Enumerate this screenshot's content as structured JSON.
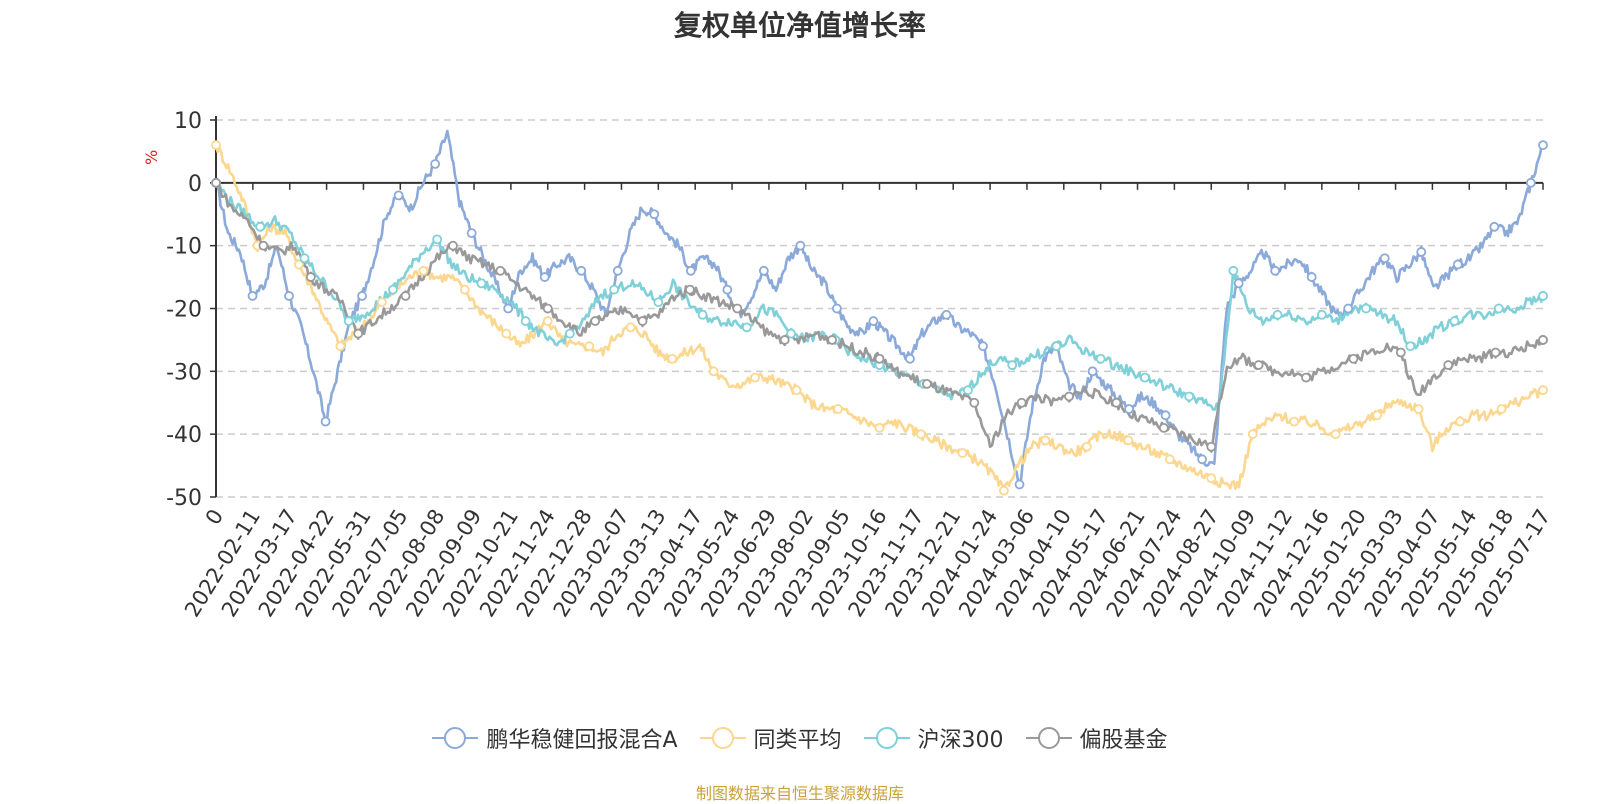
{
  "chart_data": {
    "type": "line",
    "title": "复权单位净值增长率",
    "ylabel": "%",
    "ylim": [
      -50,
      10
    ],
    "yticks": [
      10,
      0,
      -10,
      -20,
      -30,
      -40,
      -50
    ],
    "xticks": [
      "0",
      "2022-02-11",
      "2022-03-17",
      "2022-04-22",
      "2022-05-31",
      "2022-07-05",
      "2022-08-08",
      "2022-09-09",
      "2022-10-21",
      "2022-11-24",
      "2022-12-28",
      "2023-02-07",
      "2023-03-13",
      "2023-04-17",
      "2023-05-24",
      "2023-06-29",
      "2023-08-02",
      "2023-09-05",
      "2023-10-16",
      "2023-11-17",
      "2023-12-21",
      "2024-01-24",
      "2024-03-06",
      "2024-04-10",
      "2024-05-17",
      "2024-06-21",
      "2024-07-24",
      "2024-08-27",
      "2024-10-09",
      "2024-11-12",
      "2024-12-16",
      "2025-01-20",
      "2025-03-03",
      "2025-04-07",
      "2025-05-14",
      "2025-06-18",
      "2025-07-17"
    ],
    "grid": true,
    "legend_position": "bottom",
    "series": [
      {
        "name": "鹏华稳健回报混合A",
        "color": "#8ba9d9",
        "values": [
          0,
          -8,
          -11,
          -18,
          -16,
          -10,
          -18,
          -23,
          -30,
          -38,
          -30,
          -22,
          -18,
          -12,
          -5,
          -2,
          -4,
          0,
          3,
          8,
          -3,
          -8,
          -12,
          -16,
          -20,
          -14,
          -12,
          -15,
          -13,
          -12,
          -14,
          -17,
          -21,
          -14,
          -8,
          -4,
          -5,
          -8,
          -10,
          -14,
          -12,
          -13,
          -17,
          -21,
          -18,
          -14,
          -17,
          -12,
          -10,
          -14,
          -16,
          -20,
          -23,
          -24,
          -22,
          -24,
          -26,
          -28,
          -24,
          -22,
          -21,
          -23,
          -24,
          -26,
          -32,
          -40,
          -48,
          -36,
          -28,
          -26,
          -32,
          -34,
          -30,
          -32,
          -34,
          -36,
          -34,
          -35,
          -37,
          -40,
          -42,
          -44,
          -45,
          -20,
          -16,
          -14,
          -11,
          -14,
          -13,
          -12,
          -15,
          -18,
          -21,
          -20,
          -17,
          -14,
          -12,
          -15,
          -13,
          -11,
          -17,
          -15,
          -13,
          -12,
          -10,
          -7,
          -8,
          -6,
          0,
          6
        ]
      },
      {
        "name": "同类平均",
        "color": "#fbd78f",
        "values": [
          6,
          2,
          -3,
          -10,
          -7,
          -8,
          -13,
          -17,
          -22,
          -26,
          -24,
          -22,
          -19,
          -17,
          -15,
          -14,
          -15,
          -15,
          -17,
          -20,
          -22,
          -24,
          -26,
          -24,
          -22,
          -25,
          -26,
          -26,
          -27,
          -24,
          -23,
          -24,
          -27,
          -28,
          -27,
          -26,
          -30,
          -32,
          -32,
          -31,
          -31,
          -32,
          -33,
          -35,
          -36,
          -36,
          -37,
          -38,
          -39,
          -38,
          -39,
          -40,
          -41,
          -42,
          -43,
          -44,
          -46,
          -49,
          -45,
          -42,
          -41,
          -42,
          -43,
          -42,
          -40,
          -40,
          -41,
          -42,
          -43,
          -44,
          -45,
          -46,
          -47,
          -48,
          -48,
          -40,
          -38,
          -37,
          -38,
          -38,
          -39,
          -40,
          -39,
          -38,
          -37,
          -35,
          -35,
          -36,
          -42,
          -39,
          -38,
          -37,
          -37,
          -36,
          -35,
          -34,
          -33
        ]
      },
      {
        "name": "沪深300",
        "color": "#7fd0d8",
        "values": [
          0,
          -3,
          -5,
          -7,
          -6,
          -8,
          -12,
          -15,
          -18,
          -22,
          -21,
          -19,
          -17,
          -14,
          -11,
          -9,
          -13,
          -15,
          -16,
          -17,
          -19,
          -22,
          -24,
          -26,
          -24,
          -22,
          -18,
          -17,
          -16,
          -17,
          -19,
          -16,
          -19,
          -21,
          -22,
          -22,
          -23,
          -20,
          -21,
          -24,
          -25,
          -24,
          -25,
          -27,
          -28,
          -29,
          -30,
          -31,
          -32,
          -33,
          -34,
          -33,
          -30,
          -28,
          -29,
          -28,
          -27,
          -26,
          -25,
          -27,
          -28,
          -29,
          -30,
          -31,
          -32,
          -33,
          -34,
          -35,
          -36,
          -14,
          -20,
          -22,
          -21,
          -21,
          -22,
          -21,
          -22,
          -20,
          -20,
          -21,
          -22,
          -26,
          -25,
          -23,
          -22,
          -21,
          -21,
          -20,
          -20,
          -19,
          -18
        ]
      },
      {
        "name": "偏股基金",
        "color": "#999999",
        "values": [
          0,
          -4,
          -6,
          -10,
          -11,
          -10,
          -15,
          -17,
          -19,
          -24,
          -22,
          -20,
          -18,
          -15,
          -12,
          -10,
          -12,
          -13,
          -14,
          -16,
          -18,
          -20,
          -22,
          -24,
          -22,
          -21,
          -20,
          -22,
          -21,
          -18,
          -17,
          -18,
          -19,
          -20,
          -22,
          -24,
          -25,
          -25,
          -24,
          -25,
          -26,
          -27,
          -28,
          -30,
          -31,
          -32,
          -33,
          -34,
          -35,
          -42,
          -37,
          -35,
          -34,
          -35,
          -34,
          -33,
          -34,
          -35,
          -37,
          -38,
          -39,
          -40,
          -41,
          -42,
          -29,
          -28,
          -29,
          -30,
          -30,
          -31,
          -30,
          -29,
          -28,
          -27,
          -26,
          -27,
          -34,
          -31,
          -29,
          -28,
          -28,
          -27,
          -27,
          -26,
          -25
        ]
      }
    ]
  },
  "source_note": "制图数据来自恒生聚源数据库"
}
